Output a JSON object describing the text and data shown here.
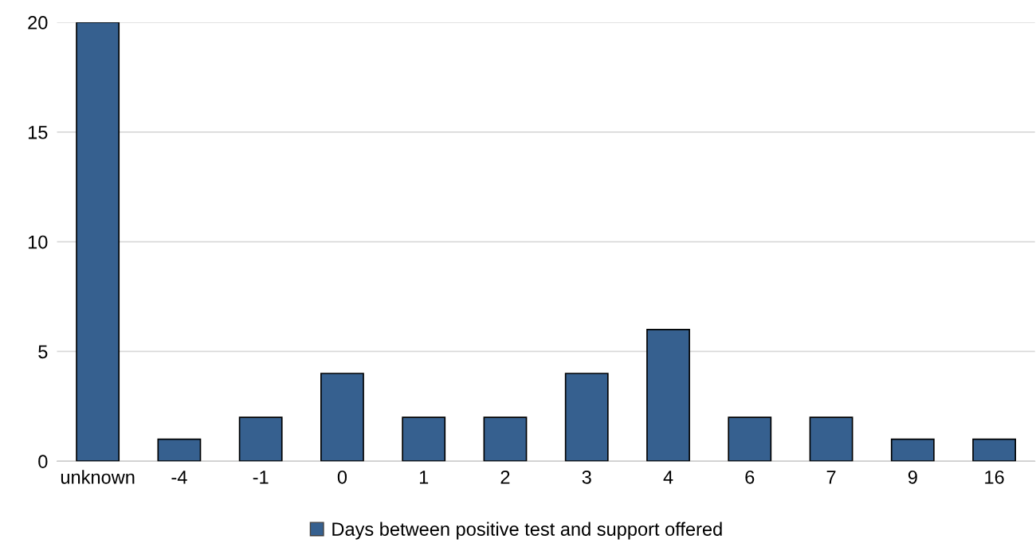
{
  "chart_data": {
    "type": "bar",
    "categories": [
      "unknown",
      "-4",
      "-1",
      "0",
      "1",
      "2",
      "3",
      "4",
      "6",
      "7",
      "9",
      "16"
    ],
    "series": [
      {
        "name": "Days between positive test and support offered",
        "color": "#36608f",
        "values": [
          20,
          1,
          2,
          4,
          2,
          2,
          4,
          6,
          2,
          2,
          1,
          1
        ]
      }
    ],
    "ylim": [
      0,
      20
    ],
    "yticks": [
      0,
      5,
      10,
      15,
      20
    ],
    "grid": "y",
    "legend": "bottom"
  }
}
